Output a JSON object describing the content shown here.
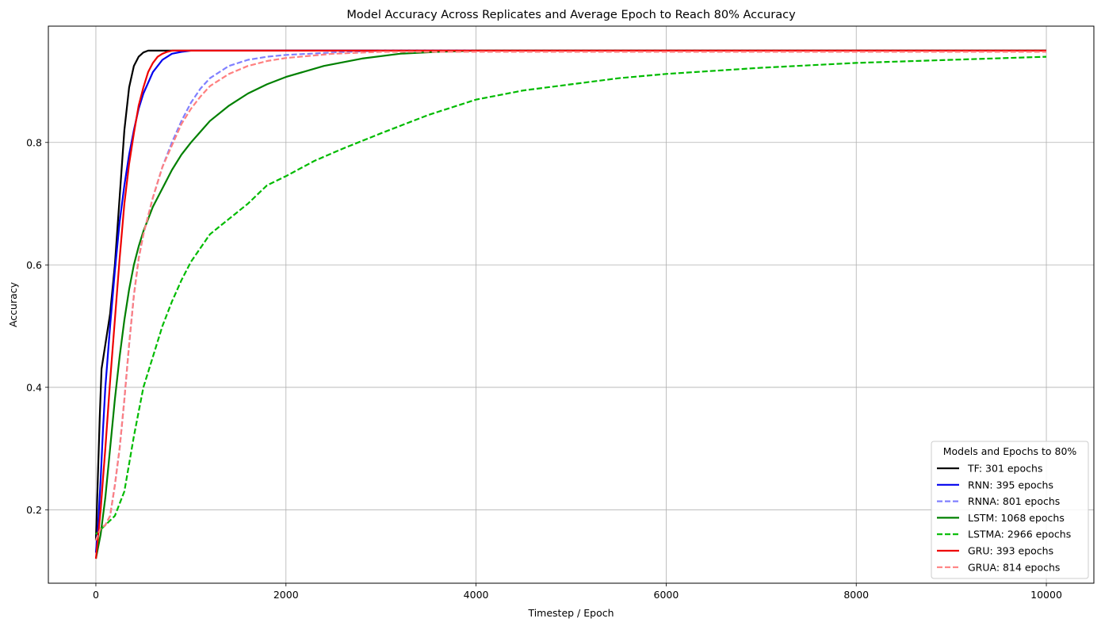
{
  "chart_data": {
    "type": "line",
    "title": "Model Accuracy Across Replicates and Average Epoch to Reach 80% Accuracy",
    "xlabel": "Timestep / Epoch",
    "ylabel": "Accuracy",
    "xlim": [
      -500,
      10500
    ],
    "ylim": [
      0.08,
      0.99
    ],
    "xticks": [
      0,
      2000,
      4000,
      6000,
      8000,
      10000
    ],
    "yticks": [
      0.2,
      0.4,
      0.6,
      0.8
    ],
    "grid": true,
    "legend": {
      "title": "Models and Epochs to 80%",
      "placement": "lower right"
    },
    "series": [
      {
        "name": "TF: 301 epochs",
        "color": "#000000",
        "dash": false,
        "x": [
          0,
          20,
          40,
          60,
          80,
          100,
          150,
          200,
          250,
          300,
          350,
          400,
          450,
          500,
          550,
          600,
          700,
          800,
          1000,
          10000
        ],
        "y": [
          0.15,
          0.25,
          0.35,
          0.43,
          0.45,
          0.47,
          0.52,
          0.6,
          0.71,
          0.82,
          0.89,
          0.925,
          0.94,
          0.947,
          0.95,
          0.95,
          0.95,
          0.95,
          0.95,
          0.95
        ]
      },
      {
        "name": "RNN: 395 epochs",
        "color": "#0000ee",
        "dash": false,
        "x": [
          0,
          25,
          50,
          75,
          100,
          150,
          200,
          250,
          300,
          350,
          400,
          450,
          500,
          600,
          700,
          800,
          900,
          1000,
          1200,
          10000
        ],
        "y": [
          0.13,
          0.18,
          0.25,
          0.33,
          0.4,
          0.5,
          0.59,
          0.67,
          0.73,
          0.78,
          0.82,
          0.855,
          0.88,
          0.915,
          0.935,
          0.945,
          0.948,
          0.95,
          0.95,
          0.95
        ]
      },
      {
        "name": "RNNA: 801 epochs",
        "color": "#8080ff",
        "dash": true,
        "x": [
          0,
          50,
          100,
          150,
          200,
          250,
          300,
          350,
          400,
          450,
          500,
          550,
          600,
          650,
          700,
          800,
          900,
          1000,
          1100,
          1200,
          1400,
          1600,
          1800,
          2000,
          2500,
          3000,
          10000
        ],
        "y": [
          0.15,
          0.17,
          0.175,
          0.19,
          0.24,
          0.3,
          0.38,
          0.47,
          0.55,
          0.61,
          0.65,
          0.68,
          0.71,
          0.735,
          0.76,
          0.8,
          0.835,
          0.865,
          0.888,
          0.905,
          0.925,
          0.935,
          0.94,
          0.943,
          0.947,
          0.95,
          0.95
        ]
      },
      {
        "name": "LSTM: 1068 epochs",
        "color": "#008000",
        "dash": false,
        "x": [
          0,
          50,
          100,
          150,
          200,
          250,
          300,
          350,
          400,
          450,
          500,
          600,
          700,
          800,
          900,
          1000,
          1200,
          1400,
          1600,
          1800,
          2000,
          2400,
          2800,
          3200,
          3600,
          4000,
          5000,
          10000
        ],
        "y": [
          0.12,
          0.16,
          0.22,
          0.3,
          0.38,
          0.45,
          0.51,
          0.56,
          0.6,
          0.63,
          0.655,
          0.695,
          0.725,
          0.755,
          0.78,
          0.8,
          0.835,
          0.86,
          0.88,
          0.895,
          0.907,
          0.925,
          0.937,
          0.945,
          0.948,
          0.95,
          0.95,
          0.95
        ]
      },
      {
        "name": "LSTMA: 2966 epochs",
        "color": "#00bb00",
        "dash": true,
        "x": [
          0,
          100,
          200,
          300,
          400,
          500,
          600,
          700,
          800,
          900,
          1000,
          1200,
          1400,
          1600,
          1800,
          2000,
          2300,
          2600,
          3000,
          3500,
          4000,
          4500,
          5000,
          5500,
          6000,
          7000,
          8000,
          9000,
          10000
        ],
        "y": [
          0.16,
          0.175,
          0.19,
          0.23,
          0.32,
          0.4,
          0.45,
          0.5,
          0.54,
          0.575,
          0.605,
          0.65,
          0.675,
          0.7,
          0.73,
          0.745,
          0.77,
          0.79,
          0.815,
          0.845,
          0.87,
          0.885,
          0.895,
          0.905,
          0.912,
          0.922,
          0.93,
          0.935,
          0.94
        ]
      },
      {
        "name": "GRU: 393 epochs",
        "color": "#ee0000",
        "dash": false,
        "x": [
          0,
          25,
          50,
          75,
          100,
          150,
          200,
          250,
          300,
          350,
          400,
          450,
          500,
          550,
          600,
          650,
          700,
          750,
          800,
          10000
        ],
        "y": [
          0.12,
          0.16,
          0.2,
          0.25,
          0.3,
          0.41,
          0.51,
          0.61,
          0.7,
          0.765,
          0.815,
          0.86,
          0.89,
          0.915,
          0.93,
          0.94,
          0.945,
          0.948,
          0.95,
          0.95
        ]
      },
      {
        "name": "GRUA: 814 epochs",
        "color": "#ff8080",
        "dash": true,
        "x": [
          0,
          50,
          100,
          150,
          200,
          250,
          300,
          350,
          400,
          450,
          500,
          550,
          600,
          650,
          700,
          800,
          900,
          1000,
          1100,
          1200,
          1400,
          1600,
          1800,
          2000,
          2500,
          3000,
          10000
        ],
        "y": [
          0.15,
          0.17,
          0.175,
          0.19,
          0.24,
          0.3,
          0.38,
          0.47,
          0.55,
          0.61,
          0.65,
          0.68,
          0.71,
          0.735,
          0.76,
          0.795,
          0.83,
          0.855,
          0.875,
          0.892,
          0.912,
          0.925,
          0.933,
          0.938,
          0.945,
          0.948,
          0.948
        ]
      }
    ]
  }
}
